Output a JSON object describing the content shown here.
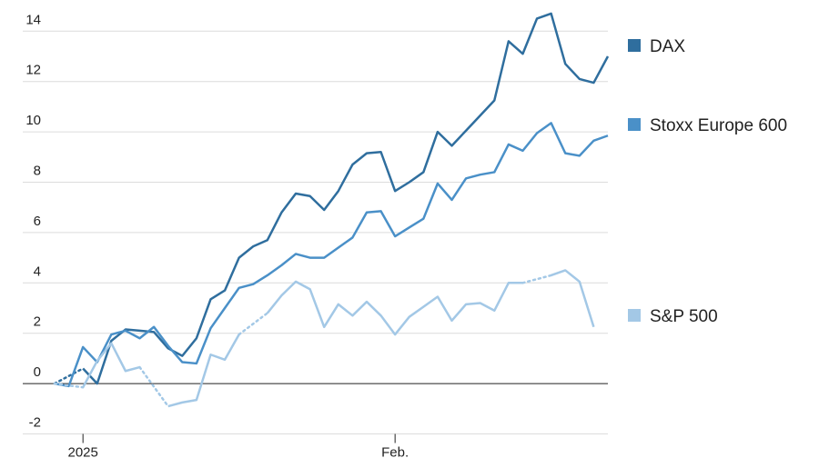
{
  "chart_data": {
    "type": "line",
    "categories": [
      null,
      null,
      "2025",
      null,
      null,
      null,
      null,
      null,
      null,
      null,
      null,
      null,
      null,
      null,
      null,
      null,
      null,
      null,
      null,
      null,
      null,
      null,
      null,
      null,
      "Feb.",
      null,
      null,
      null,
      null,
      null,
      null,
      null,
      null,
      null,
      null,
      null,
      null,
      null,
      null,
      null
    ],
    "series": [
      {
        "name": "DAX",
        "color": "#2f6e9e",
        "values": [
          0,
          null,
          0.6,
          0,
          1.7,
          2.15,
          2.1,
          2.05,
          1.4,
          1.1,
          1.8,
          3.35,
          3.7,
          5.0,
          5.45,
          5.7,
          6.8,
          7.55,
          7.45,
          6.9,
          7.65,
          8.7,
          9.15,
          9.2,
          7.65,
          8.0,
          8.4,
          10.0,
          9.45,
          10.05,
          10.65,
          11.25,
          13.6,
          13.1,
          14.5,
          14.7,
          12.7,
          12.1,
          11.95,
          13.0
        ]
      },
      {
        "name": "Stoxx Europe 600",
        "color": "#4a90c8",
        "values": [
          0,
          -0.1,
          1.45,
          0.85,
          1.95,
          2.1,
          1.8,
          2.25,
          1.5,
          0.85,
          0.8,
          2.2,
          3.0,
          3.8,
          3.95,
          4.3,
          4.7,
          5.15,
          5.0,
          5.0,
          5.4,
          5.8,
          6.8,
          6.85,
          5.85,
          6.2,
          6.55,
          7.95,
          7.3,
          8.15,
          8.3,
          8.4,
          9.5,
          9.25,
          9.95,
          10.35,
          9.15,
          9.05,
          9.65,
          9.85
        ]
      },
      {
        "name": "S&P 500",
        "color": "#a3c8e6",
        "values": [
          0,
          null,
          -0.15,
          0.9,
          1.6,
          0.5,
          0.65,
          null,
          -0.9,
          -0.75,
          -0.65,
          1.15,
          0.95,
          1.95,
          null,
          2.8,
          3.5,
          4.05,
          3.75,
          2.25,
          3.15,
          2.7,
          3.25,
          2.7,
          1.95,
          2.65,
          3.05,
          3.45,
          2.5,
          3.15,
          3.2,
          2.9,
          4.0,
          4.0,
          null,
          4.3,
          4.5,
          4.05,
          2.25,
          null
        ]
      }
    ],
    "ylim": [
      -2,
      15
    ],
    "yticks": [
      -2,
      0,
      2,
      4,
      6,
      8,
      10,
      12,
      14
    ],
    "grid": true
  }
}
